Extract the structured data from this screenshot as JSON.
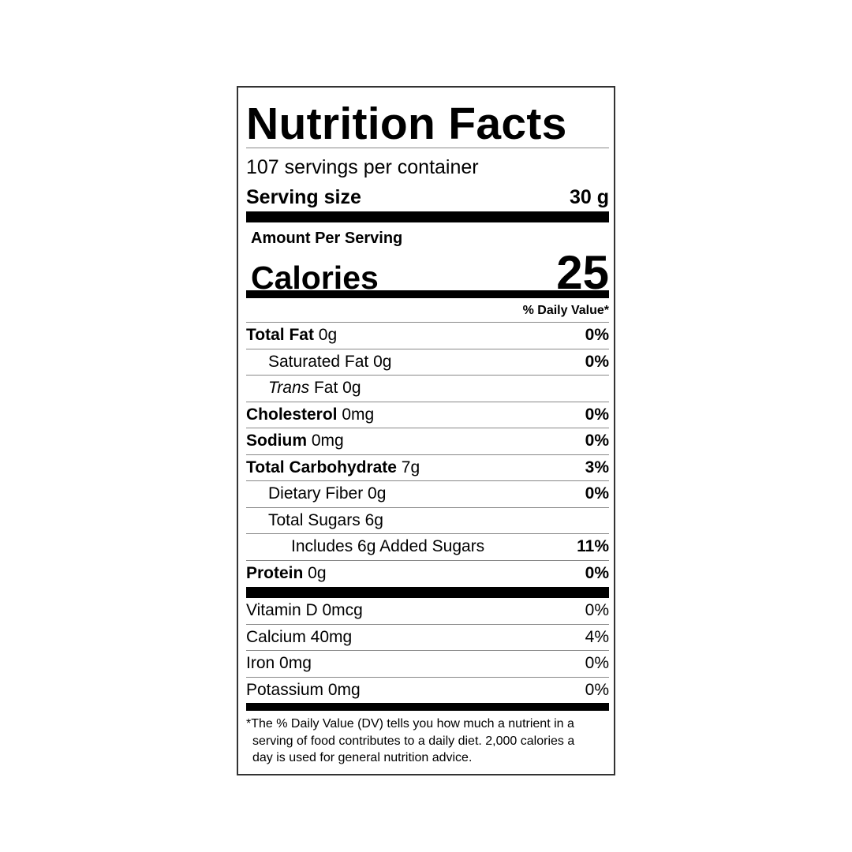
{
  "title": "Nutrition Facts",
  "servings_per_container": "107 servings per container",
  "serving_size": {
    "label": "Serving size",
    "value": "30 g"
  },
  "amount_per_serving": "Amount Per Serving",
  "calories": {
    "label": "Calories",
    "value": "25"
  },
  "daily_value_header": "% Daily Value*",
  "nutrients": [
    {
      "name": "Total Fat",
      "amount": " 0g",
      "dv": "0%"
    },
    {
      "name": "Saturated Fat 0g",
      "dv": "0%"
    },
    {
      "name_italic": "Trans",
      "name": " Fat 0g",
      "dv": ""
    },
    {
      "name": "Cholesterol",
      "amount": " 0mg",
      "dv": "0%"
    },
    {
      "name": "Sodium",
      "amount": " 0mg",
      "dv": "0%"
    },
    {
      "name": "Total Carbohydrate",
      "amount": " 7g",
      "dv": "3%"
    },
    {
      "name": "Dietary Fiber 0g",
      "dv": "0%"
    },
    {
      "name": "Total Sugars 6g",
      "dv": ""
    },
    {
      "name": "Includes 6g Added Sugars",
      "dv": "11%"
    },
    {
      "name": "Protein",
      "amount": " 0g",
      "dv": "0%"
    }
  ],
  "vitamins": [
    {
      "name": "Vitamin D 0mcg",
      "dv": "0%"
    },
    {
      "name": "Calcium 40mg",
      "dv": "4%"
    },
    {
      "name": "Iron 0mg",
      "dv": "0%"
    },
    {
      "name": "Potassium 0mg",
      "dv": "0%"
    }
  ],
  "footnote": [
    "*The % Daily Value (DV) tells you how much a nutrient in a",
    "serving of food contributes to a daily diet. 2,000 calories a",
    "day is used for general nutrition advice."
  ]
}
